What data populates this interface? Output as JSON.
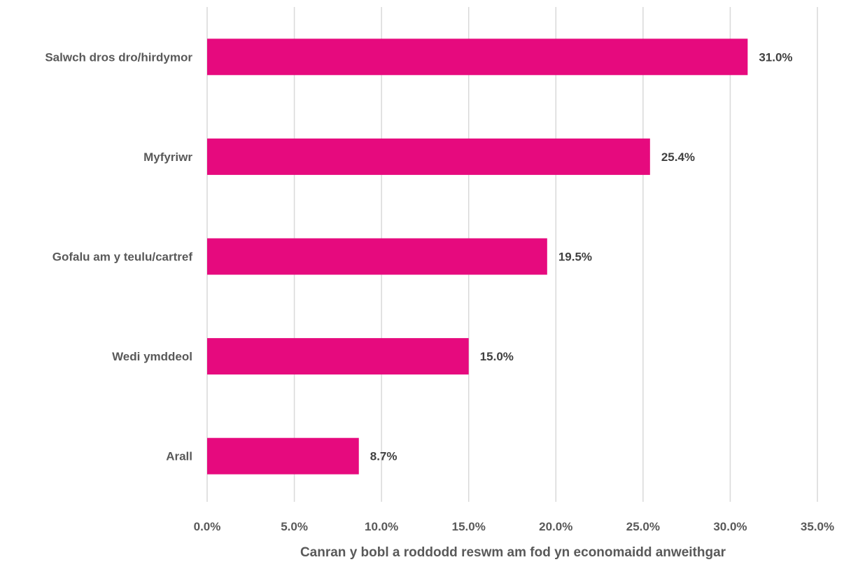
{
  "chart_data": {
    "type": "bar",
    "orientation": "horizontal",
    "categories": [
      "Salwch dros dro/hirdymor",
      "Myfyriwr",
      "Gofalu am y teulu/cartref",
      "Wedi ymddeol",
      "Arall"
    ],
    "values": [
      31.0,
      25.4,
      19.5,
      15.0,
      8.7
    ],
    "data_labels": [
      "31.0%",
      "25.4%",
      "19.5%",
      "15.0%",
      "8.7%"
    ],
    "title": "",
    "xlabel": "Canran y bobl a roddodd reswm am fod yn economaidd anweithgar",
    "ylabel": "",
    "xlim": [
      0,
      35
    ],
    "x_ticks": [
      0,
      5,
      10,
      15,
      20,
      25,
      30,
      35
    ],
    "x_tick_labels": [
      "0.0%",
      "5.0%",
      "10.0%",
      "15.0%",
      "20.0%",
      "25.0%",
      "30.0%",
      "35.0%"
    ],
    "grid": "vertical",
    "legend": "none",
    "bar_color": "#E60A7E",
    "gridline_color": "#D9D9D9",
    "text_color": "#595959"
  }
}
